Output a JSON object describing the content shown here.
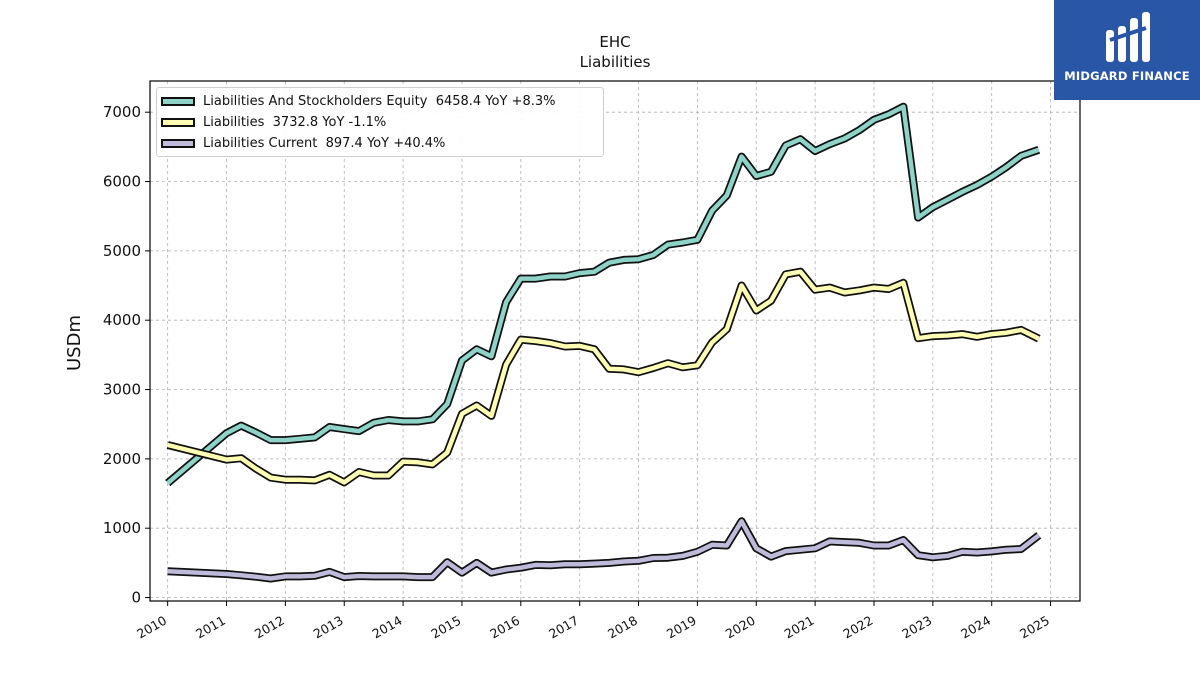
{
  "chart_data": {
    "type": "line",
    "title": "EHC",
    "subtitle": "Liabilities",
    "ylabel": "USDm",
    "xlabel": "",
    "ylim": [
      -50,
      7450
    ],
    "xlim": [
      2009.7,
      2025.5
    ],
    "yticks": [
      0,
      1000,
      2000,
      3000,
      4000,
      5000,
      6000,
      7000
    ],
    "xticks": [
      "2010",
      "2011",
      "2012",
      "2013",
      "2014",
      "2015",
      "2016",
      "2017",
      "2018",
      "2019",
      "2020",
      "2021",
      "2022",
      "2023",
      "2024",
      "2025"
    ],
    "grid": true,
    "legend_position": "upper-left",
    "series": [
      {
        "name": "Liabilities And Stockholders Equity",
        "legend_label": "Liabilities And Stockholders Equity  6458.4 YoY +8.3%",
        "color": "#8dd3c7",
        "points": [
          [
            2010.0,
            1650
          ],
          [
            2011.0,
            2370
          ],
          [
            2011.25,
            2480
          ],
          [
            2011.5,
            2380
          ],
          [
            2011.75,
            2270
          ],
          [
            2012.0,
            2270
          ],
          [
            2012.25,
            2290
          ],
          [
            2012.5,
            2310
          ],
          [
            2012.75,
            2460
          ],
          [
            2013.0,
            2430
          ],
          [
            2013.25,
            2400
          ],
          [
            2013.5,
            2520
          ],
          [
            2013.75,
            2560
          ],
          [
            2014.0,
            2540
          ],
          [
            2014.25,
            2540
          ],
          [
            2014.5,
            2570
          ],
          [
            2014.75,
            2790
          ],
          [
            2015.0,
            3420
          ],
          [
            2015.25,
            3580
          ],
          [
            2015.5,
            3480
          ],
          [
            2015.75,
            4260
          ],
          [
            2016.0,
            4600
          ],
          [
            2016.25,
            4600
          ],
          [
            2016.5,
            4630
          ],
          [
            2016.75,
            4630
          ],
          [
            2017.0,
            4680
          ],
          [
            2017.25,
            4700
          ],
          [
            2017.5,
            4830
          ],
          [
            2017.75,
            4870
          ],
          [
            2018.0,
            4880
          ],
          [
            2018.25,
            4940
          ],
          [
            2018.5,
            5090
          ],
          [
            2018.75,
            5120
          ],
          [
            2019.0,
            5160
          ],
          [
            2019.25,
            5580
          ],
          [
            2019.5,
            5800
          ],
          [
            2019.75,
            6360
          ],
          [
            2020.0,
            6080
          ],
          [
            2020.25,
            6140
          ],
          [
            2020.5,
            6520
          ],
          [
            2020.75,
            6610
          ],
          [
            2021.0,
            6440
          ],
          [
            2021.25,
            6540
          ],
          [
            2021.5,
            6620
          ],
          [
            2021.75,
            6740
          ],
          [
            2022.0,
            6890
          ],
          [
            2022.25,
            6970
          ],
          [
            2022.5,
            7080
          ],
          [
            2022.75,
            5480
          ],
          [
            2023.0,
            5630
          ],
          [
            2023.25,
            5740
          ],
          [
            2023.5,
            5850
          ],
          [
            2023.75,
            5950
          ],
          [
            2024.0,
            6070
          ],
          [
            2024.25,
            6210
          ],
          [
            2024.5,
            6370
          ],
          [
            2024.8,
            6458.4
          ]
        ]
      },
      {
        "name": "Liabilities",
        "legend_label": "Liabilities  3732.8 YoY -1.1%",
        "color": "#ffffb3",
        "points": [
          [
            2010.0,
            2200
          ],
          [
            2011.0,
            1990
          ],
          [
            2011.25,
            2010
          ],
          [
            2011.5,
            1860
          ],
          [
            2011.75,
            1730
          ],
          [
            2012.0,
            1700
          ],
          [
            2012.25,
            1700
          ],
          [
            2012.5,
            1690
          ],
          [
            2012.75,
            1770
          ],
          [
            2013.0,
            1660
          ],
          [
            2013.25,
            1810
          ],
          [
            2013.5,
            1760
          ],
          [
            2013.75,
            1760
          ],
          [
            2014.0,
            1960
          ],
          [
            2014.25,
            1950
          ],
          [
            2014.5,
            1920
          ],
          [
            2014.75,
            2090
          ],
          [
            2015.0,
            2650
          ],
          [
            2015.25,
            2770
          ],
          [
            2015.5,
            2620
          ],
          [
            2015.75,
            3360
          ],
          [
            2016.0,
            3720
          ],
          [
            2016.25,
            3700
          ],
          [
            2016.5,
            3670
          ],
          [
            2016.75,
            3620
          ],
          [
            2017.0,
            3630
          ],
          [
            2017.25,
            3580
          ],
          [
            2017.5,
            3300
          ],
          [
            2017.75,
            3290
          ],
          [
            2018.0,
            3250
          ],
          [
            2018.25,
            3310
          ],
          [
            2018.5,
            3380
          ],
          [
            2018.75,
            3320
          ],
          [
            2019.0,
            3350
          ],
          [
            2019.25,
            3680
          ],
          [
            2019.5,
            3870
          ],
          [
            2019.75,
            4500
          ],
          [
            2020.0,
            4140
          ],
          [
            2020.25,
            4280
          ],
          [
            2020.5,
            4660
          ],
          [
            2020.75,
            4700
          ],
          [
            2021.0,
            4440
          ],
          [
            2021.25,
            4470
          ],
          [
            2021.5,
            4400
          ],
          [
            2021.75,
            4430
          ],
          [
            2022.0,
            4470
          ],
          [
            2022.25,
            4450
          ],
          [
            2022.5,
            4540
          ],
          [
            2022.75,
            3740
          ],
          [
            2023.0,
            3770
          ],
          [
            2023.25,
            3780
          ],
          [
            2023.5,
            3800
          ],
          [
            2023.75,
            3760
          ],
          [
            2024.0,
            3800
          ],
          [
            2024.25,
            3820
          ],
          [
            2024.5,
            3860
          ],
          [
            2024.8,
            3732.8
          ]
        ]
      },
      {
        "name": "Liabilities Current",
        "legend_label": "Liabilities Current  897.4 YoY +40.4%",
        "color": "#bebada",
        "points": [
          [
            2010.0,
            380
          ],
          [
            2011.0,
            340
          ],
          [
            2011.25,
            320
          ],
          [
            2011.5,
            300
          ],
          [
            2011.75,
            275
          ],
          [
            2012.0,
            305
          ],
          [
            2012.25,
            305
          ],
          [
            2012.5,
            315
          ],
          [
            2012.75,
            370
          ],
          [
            2013.0,
            295
          ],
          [
            2013.25,
            310
          ],
          [
            2013.5,
            305
          ],
          [
            2013.75,
            305
          ],
          [
            2014.0,
            305
          ],
          [
            2014.25,
            295
          ],
          [
            2014.5,
            295
          ],
          [
            2014.75,
            510
          ],
          [
            2015.0,
            360
          ],
          [
            2015.25,
            500
          ],
          [
            2015.5,
            360
          ],
          [
            2015.75,
            405
          ],
          [
            2016.0,
            430
          ],
          [
            2016.25,
            470
          ],
          [
            2016.5,
            465
          ],
          [
            2016.75,
            480
          ],
          [
            2017.0,
            480
          ],
          [
            2017.25,
            490
          ],
          [
            2017.5,
            500
          ],
          [
            2017.75,
            520
          ],
          [
            2018.0,
            530
          ],
          [
            2018.25,
            570
          ],
          [
            2018.5,
            575
          ],
          [
            2018.75,
            600
          ],
          [
            2019.0,
            660
          ],
          [
            2019.25,
            760
          ],
          [
            2019.5,
            750
          ],
          [
            2019.75,
            1100
          ],
          [
            2020.0,
            710
          ],
          [
            2020.25,
            590
          ],
          [
            2020.5,
            670
          ],
          [
            2020.75,
            690
          ],
          [
            2021.0,
            710
          ],
          [
            2021.25,
            810
          ],
          [
            2021.5,
            800
          ],
          [
            2021.75,
            790
          ],
          [
            2022.0,
            750
          ],
          [
            2022.25,
            750
          ],
          [
            2022.5,
            830
          ],
          [
            2022.75,
            610
          ],
          [
            2023.0,
            580
          ],
          [
            2023.25,
            600
          ],
          [
            2023.5,
            660
          ],
          [
            2023.75,
            650
          ],
          [
            2024.0,
            665
          ],
          [
            2024.25,
            690
          ],
          [
            2024.5,
            700
          ],
          [
            2024.8,
            897.4
          ]
        ]
      }
    ]
  },
  "logo": {
    "text": "MIDGARD FINANCE",
    "color": "#2a56a8"
  }
}
